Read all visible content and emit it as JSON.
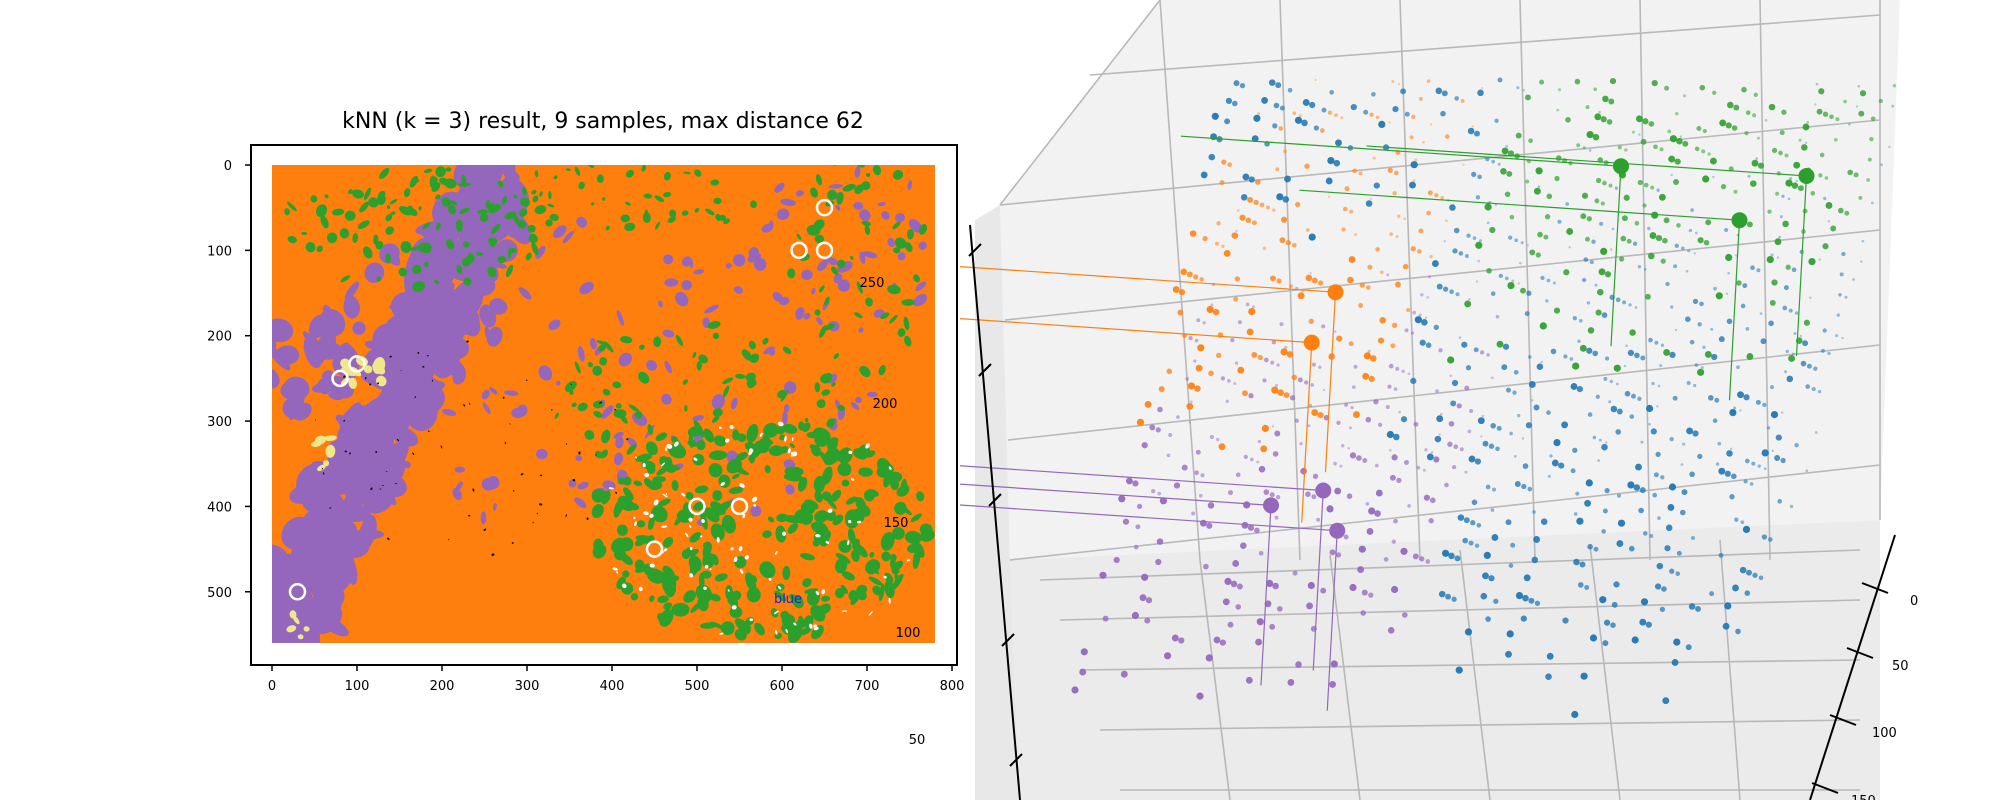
{
  "chart_data": [
    {
      "type": "heatmap",
      "title": "kNN (k = 3) result, 9 samples, max distance 62",
      "xlabel": "",
      "ylabel": "",
      "xlim": [
        0,
        800
      ],
      "ylim": [
        0,
        560
      ],
      "y_inverted": true,
      "x_ticks": [
        "0",
        "100",
        "200",
        "300",
        "400",
        "500",
        "600",
        "700",
        "800"
      ],
      "y_ticks": [
        "0",
        "100",
        "200",
        "300",
        "400",
        "500"
      ],
      "class_colors": {
        "orange": "#ff7f0e",
        "green": "#2ca02c",
        "purple": "#9467bd",
        "blue": "#1f77b4",
        "yellow": "#f0e68c"
      },
      "samples": [
        {
          "x": 650,
          "y": 50
        },
        {
          "x": 620,
          "y": 100
        },
        {
          "x": 650,
          "y": 100
        },
        {
          "x": 100,
          "y": 233
        },
        {
          "x": 80,
          "y": 250
        },
        {
          "x": 500,
          "y": 400
        },
        {
          "x": 550,
          "y": 400
        },
        {
          "x": 450,
          "y": 450
        },
        {
          "x": 30,
          "y": 500
        }
      ],
      "overlay_labels": [
        "250",
        "200",
        "150",
        "100",
        "50",
        "blue"
      ]
    },
    {
      "type": "scatter",
      "projection": "3d",
      "axis_ticks": [
        "0",
        "50",
        "100",
        "150"
      ],
      "series_colors": [
        "#1f77b4",
        "#ff7f0e",
        "#2ca02c",
        "#9467bd"
      ],
      "highlighted_points": [
        {
          "class": "green",
          "x": 160,
          "y": 110,
          "z": 190
        },
        {
          "class": "green",
          "x": 235,
          "y": 120,
          "z": 185
        },
        {
          "class": "green",
          "x": 210,
          "y": 150,
          "z": 150
        },
        {
          "class": "orange",
          "x": 60,
          "y": 75,
          "z": 145
        },
        {
          "class": "orange",
          "x": 55,
          "y": 80,
          "z": 120
        },
        {
          "class": "purple",
          "x": 75,
          "y": 70,
          "z": 60
        },
        {
          "class": "purple",
          "x": 55,
          "y": 75,
          "z": 50
        },
        {
          "class": "purple",
          "x": 85,
          "y": 65,
          "z": 45
        }
      ]
    }
  ]
}
